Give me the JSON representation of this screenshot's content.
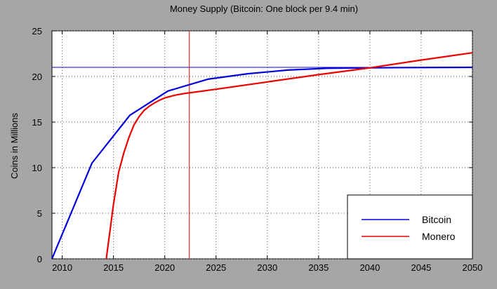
{
  "chart_data": {
    "type": "line",
    "title": "Money Supply (Bitcoin: One block per 9.4 min)",
    "xlabel": "",
    "ylabel": "Coins in Millions",
    "xlim": [
      2009,
      2050
    ],
    "ylim": [
      0,
      25
    ],
    "xticks": [
      2010,
      2015,
      2020,
      2025,
      2030,
      2035,
      2040,
      2045,
      2050
    ],
    "yticks": [
      0,
      5,
      10,
      15,
      20,
      25
    ],
    "grid": true,
    "legend_position": "bottom-right",
    "reference_lines": {
      "horizontal_y": 21,
      "vertical_x": 2022.4
    },
    "series": [
      {
        "name": "Bitcoin",
        "color": "#0000dd",
        "x": [
          2009.0,
          2012.9,
          2016.6,
          2020.3,
          2024.2,
          2028.1,
          2032.0,
          2035.9,
          2039.8,
          2043.7,
          2047.6,
          2050
        ],
        "y": [
          0.0,
          10.5,
          15.75,
          18.4,
          19.7,
          20.3,
          20.7,
          20.9,
          20.95,
          20.98,
          20.99,
          21.0
        ]
      },
      {
        "name": "Monero",
        "color": "#ee0000",
        "x": [
          2014.3,
          2015.0,
          2015.5,
          2016.0,
          2016.5,
          2017.0,
          2017.5,
          2018.0,
          2018.5,
          2019.0,
          2019.5,
          2020.0,
          2021.0,
          2022.0,
          2022.4,
          2025.0,
          2030.0,
          2035.0,
          2040.0,
          2045.0,
          2050.0
        ],
        "y": [
          0.0,
          6.0,
          9.5,
          11.6,
          13.3,
          14.7,
          15.6,
          16.3,
          16.75,
          17.1,
          17.4,
          17.65,
          17.95,
          18.15,
          18.2,
          18.6,
          19.4,
          20.2,
          20.95,
          21.8,
          22.6
        ]
      }
    ]
  }
}
